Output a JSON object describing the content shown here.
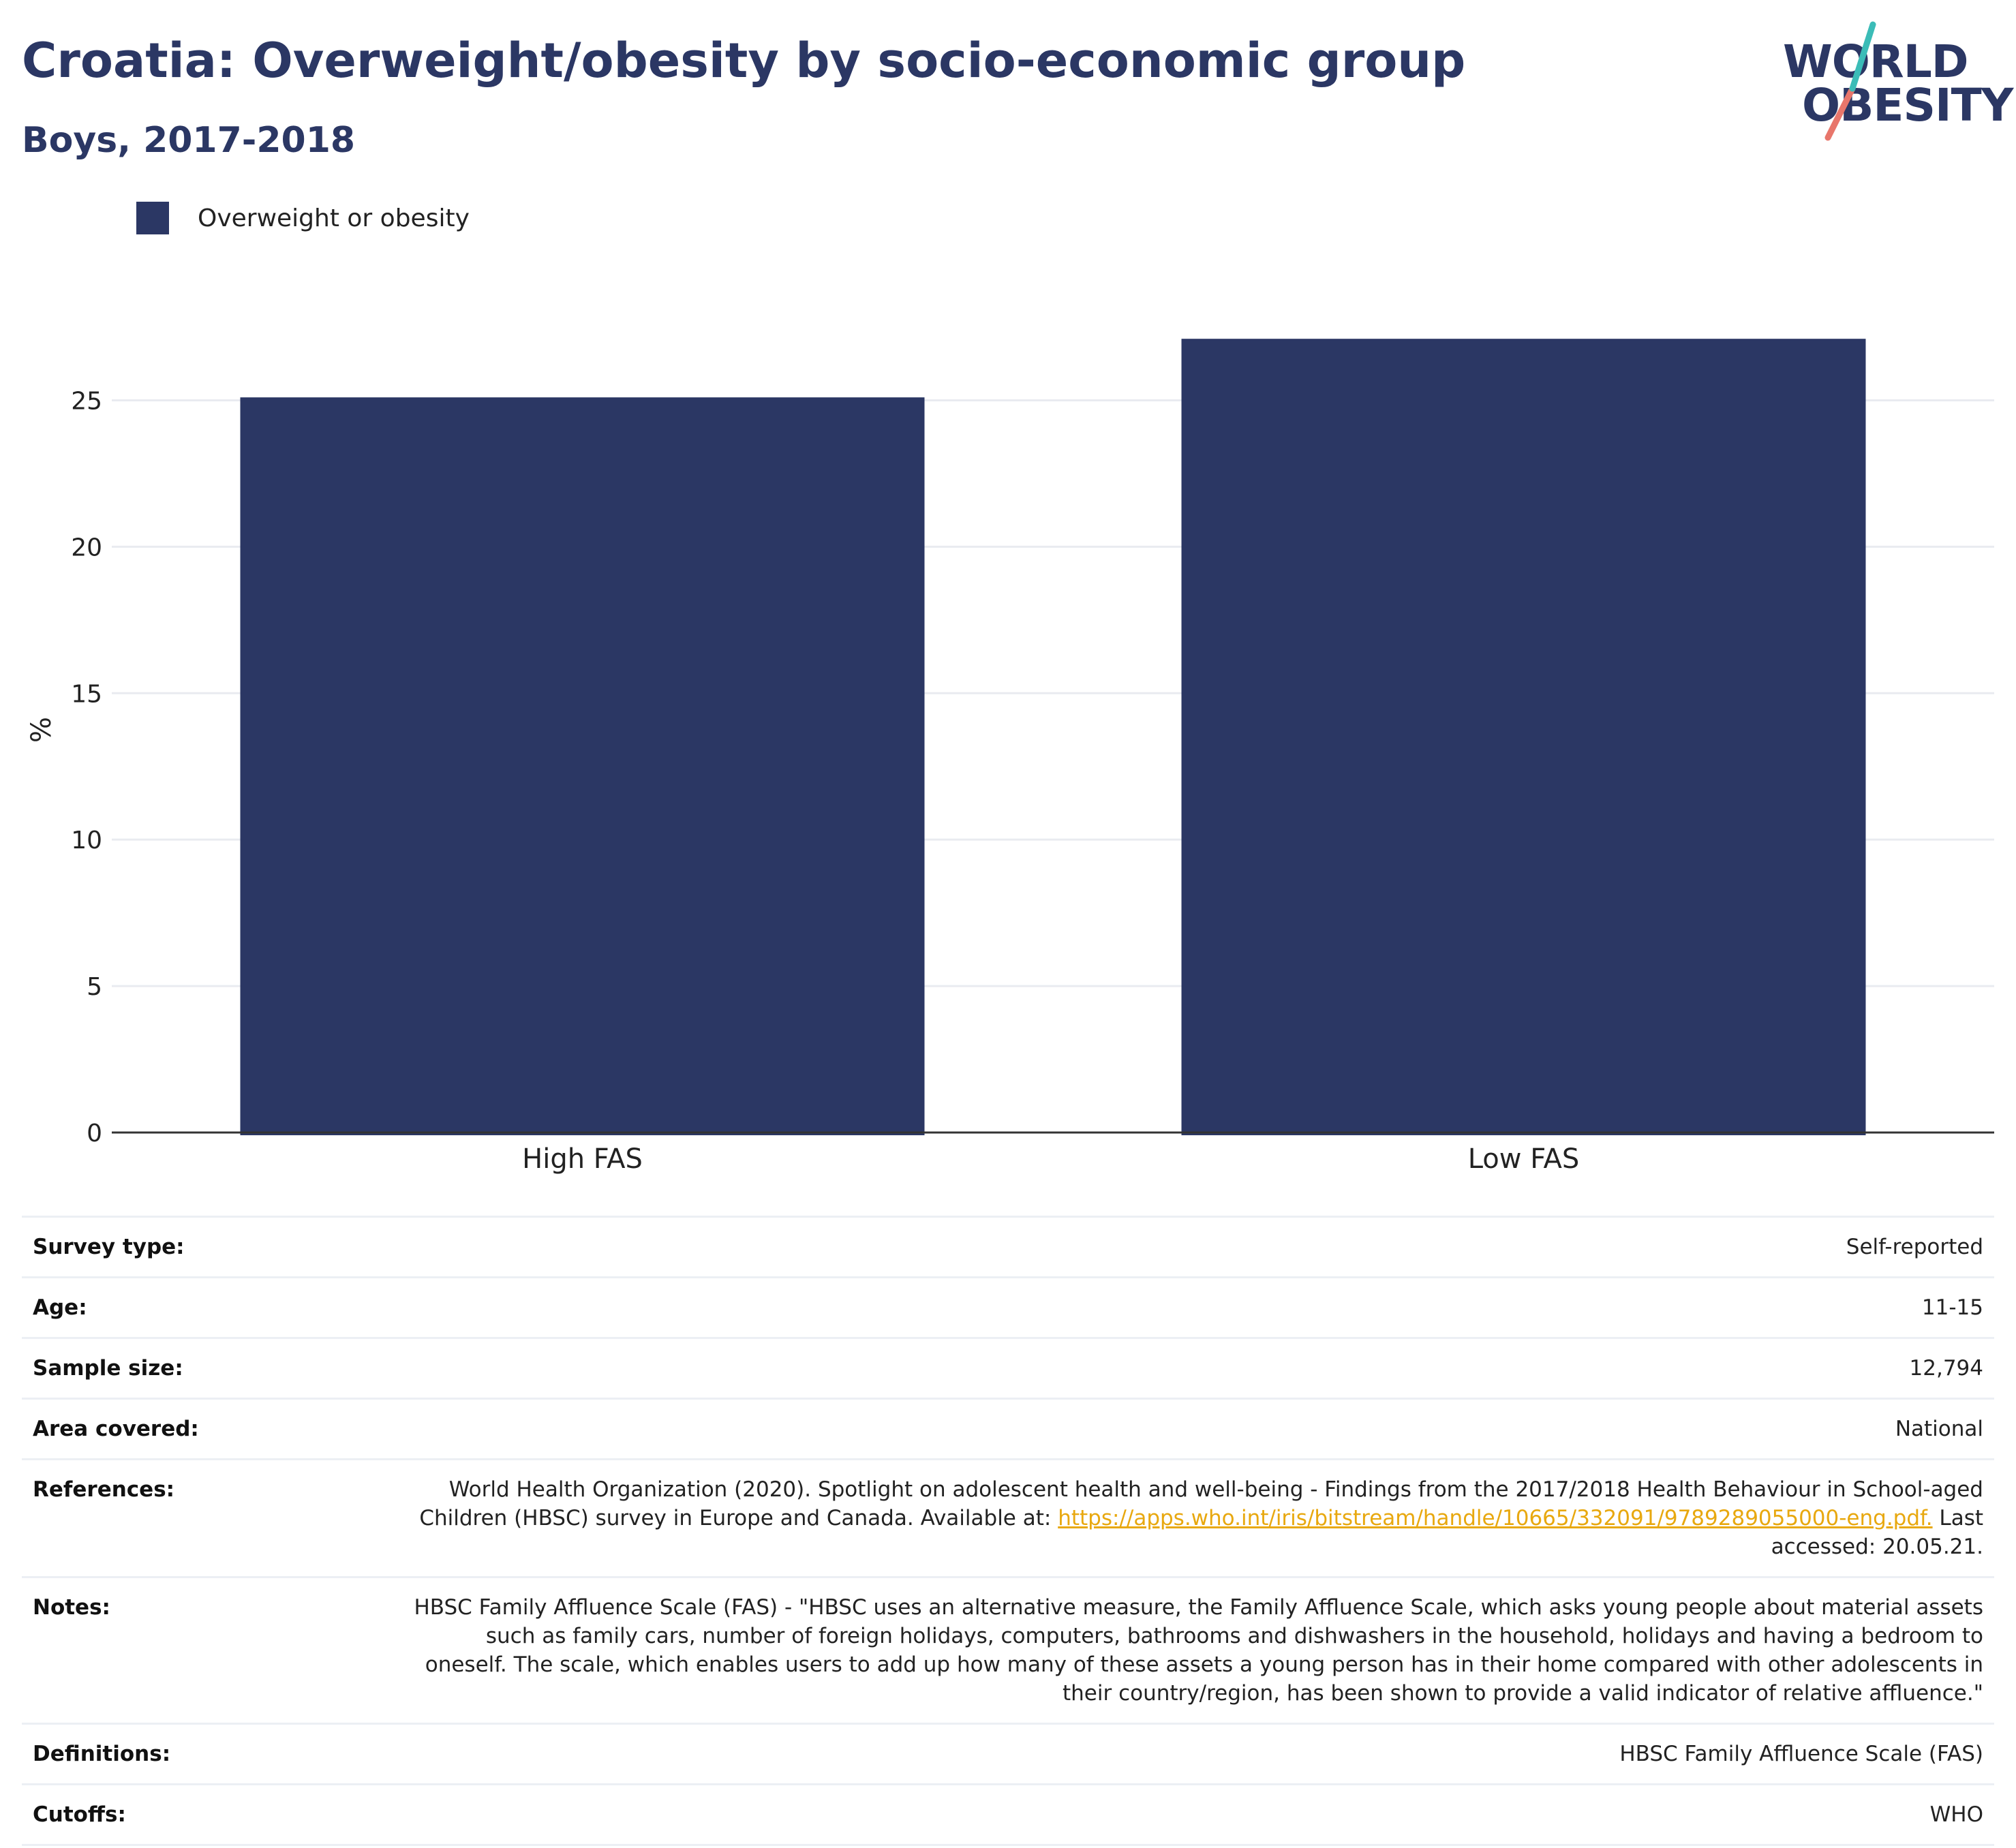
{
  "header": {
    "title": "Croatia: Overweight/obesity by socio-economic group",
    "subtitle": "Boys, 2017-2018"
  },
  "logo": {
    "line1": "WORLD",
    "line2": "OBESITY",
    "colors": {
      "text": "#2b3764",
      "slash_top": "#3bbcb7",
      "slash_bottom": "#e8766b"
    }
  },
  "legend": {
    "label": "Overweight or obesity",
    "color": "#2b3764"
  },
  "chart_data": {
    "type": "bar",
    "categories": [
      "High FAS",
      "Low FAS"
    ],
    "series": [
      {
        "name": "Overweight or obesity",
        "values": [
          25.1,
          27.1
        ],
        "color": "#2b3764"
      }
    ],
    "ylabel": "%",
    "xlabel": "",
    "ylim": [
      0,
      27.5
    ],
    "yticks": [
      0,
      5,
      10,
      15,
      20,
      25
    ],
    "grid": true,
    "legend_position": "top-left"
  },
  "meta": [
    {
      "key": "Survey type:",
      "value": "Self-reported"
    },
    {
      "key": "Age:",
      "value": "11-15"
    },
    {
      "key": "Sample size:",
      "value": "12,794"
    },
    {
      "key": "Area covered:",
      "value": "National"
    },
    {
      "key": "Notes:",
      "value": "HBSC Family Affluence Scale (FAS) - \"HBSC uses an alternative measure, the Family Affluence Scale, which asks young people about material assets such as family cars, number of foreign holidays, computers, bathrooms and dishwashers in the household, holidays and having a bedroom to oneself. The scale, which enables users to add up how many of these assets a young person has in their home compared with other adolescents in their country/region, has been shown to provide a valid indicator of relative affluence.\""
    },
    {
      "key": "Definitions:",
      "value": "HBSC Family Affluence Scale (FAS)"
    },
    {
      "key": "Cutoffs:",
      "value": "WHO"
    }
  ],
  "references": {
    "key": "References:",
    "text": "World Health Organization (2020). Spotlight on adolescent health and well-being - Findings from the 2017/2018 Health Behaviour in School-aged Children (HBSC) survey in Europe and Canada. Available at:",
    "link": "https://apps.who.int/iris/bitstream/handle/10665/332091/9789289055000-eng.pdf.",
    "suffix": "Last accessed: 20.05.21."
  }
}
